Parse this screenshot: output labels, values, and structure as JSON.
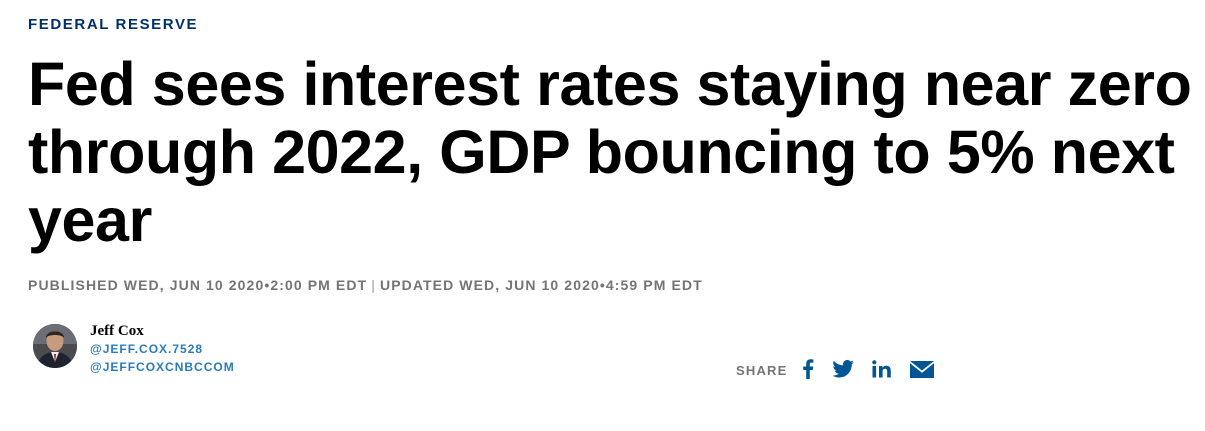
{
  "article": {
    "section_label": "FEDERAL RESERVE",
    "headline": "Fed sees interest rates staying near zero through 2022, GDP bouncing to 5% next year",
    "published": "PUBLISHED WED, JUN 10 2020•2:00 PM EDT",
    "separator": "|",
    "updated": "UPDATED WED, JUN 10 2020•4:59 PM EDT"
  },
  "author": {
    "name": "Jeff Cox",
    "handle_primary": "@JEFF.COX.7528",
    "handle_secondary": "@JEFFCOXCNBCCOM"
  },
  "share": {
    "label": "SHARE",
    "icons": [
      "facebook-icon",
      "twitter-icon",
      "linkedin-icon",
      "email-icon"
    ],
    "icon_color": "#005594"
  },
  "colors": {
    "kicker": "#002f6c",
    "headline": "#000000",
    "meta_gray": "#747474",
    "handle_blue": "#2a7cb9",
    "share_blue": "#005594"
  }
}
